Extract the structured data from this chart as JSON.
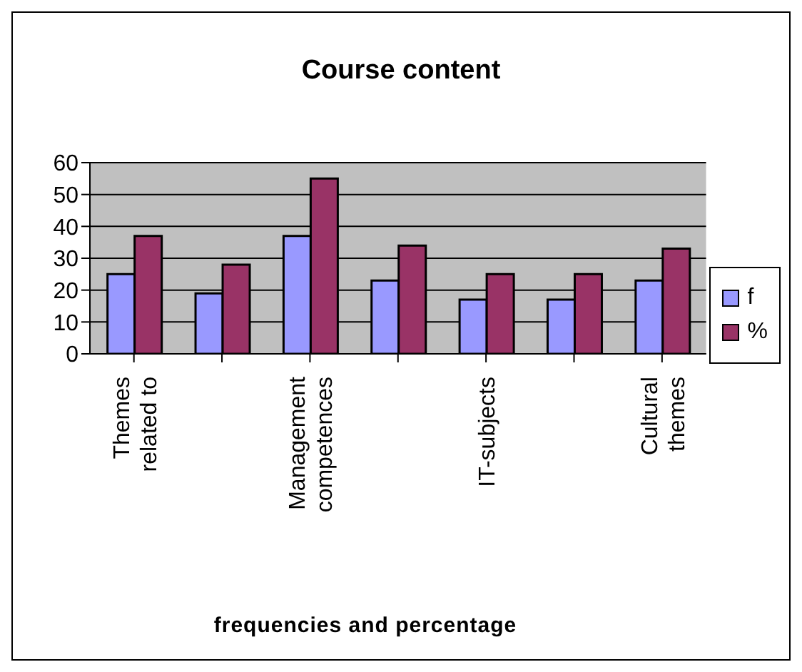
{
  "chart_data": {
    "type": "bar",
    "title": "Course content",
    "xlabel": "frequencies and percentage",
    "categories": [
      "Themes related to",
      null,
      "Management competences",
      null,
      "IT-subjects",
      null,
      "Cultural themes"
    ],
    "series": [
      {
        "name": "f",
        "color": "#9999ff",
        "values": [
          25,
          19,
          37,
          23,
          17,
          17,
          23
        ]
      },
      {
        "name": "%",
        "color": "#993366",
        "values": [
          37,
          28,
          55,
          34,
          25,
          25,
          33
        ]
      }
    ],
    "ylim": [
      0,
      60
    ],
    "yticks": [
      0,
      10,
      20,
      30,
      40,
      50,
      60
    ],
    "grid": "y",
    "legend": "right"
  }
}
